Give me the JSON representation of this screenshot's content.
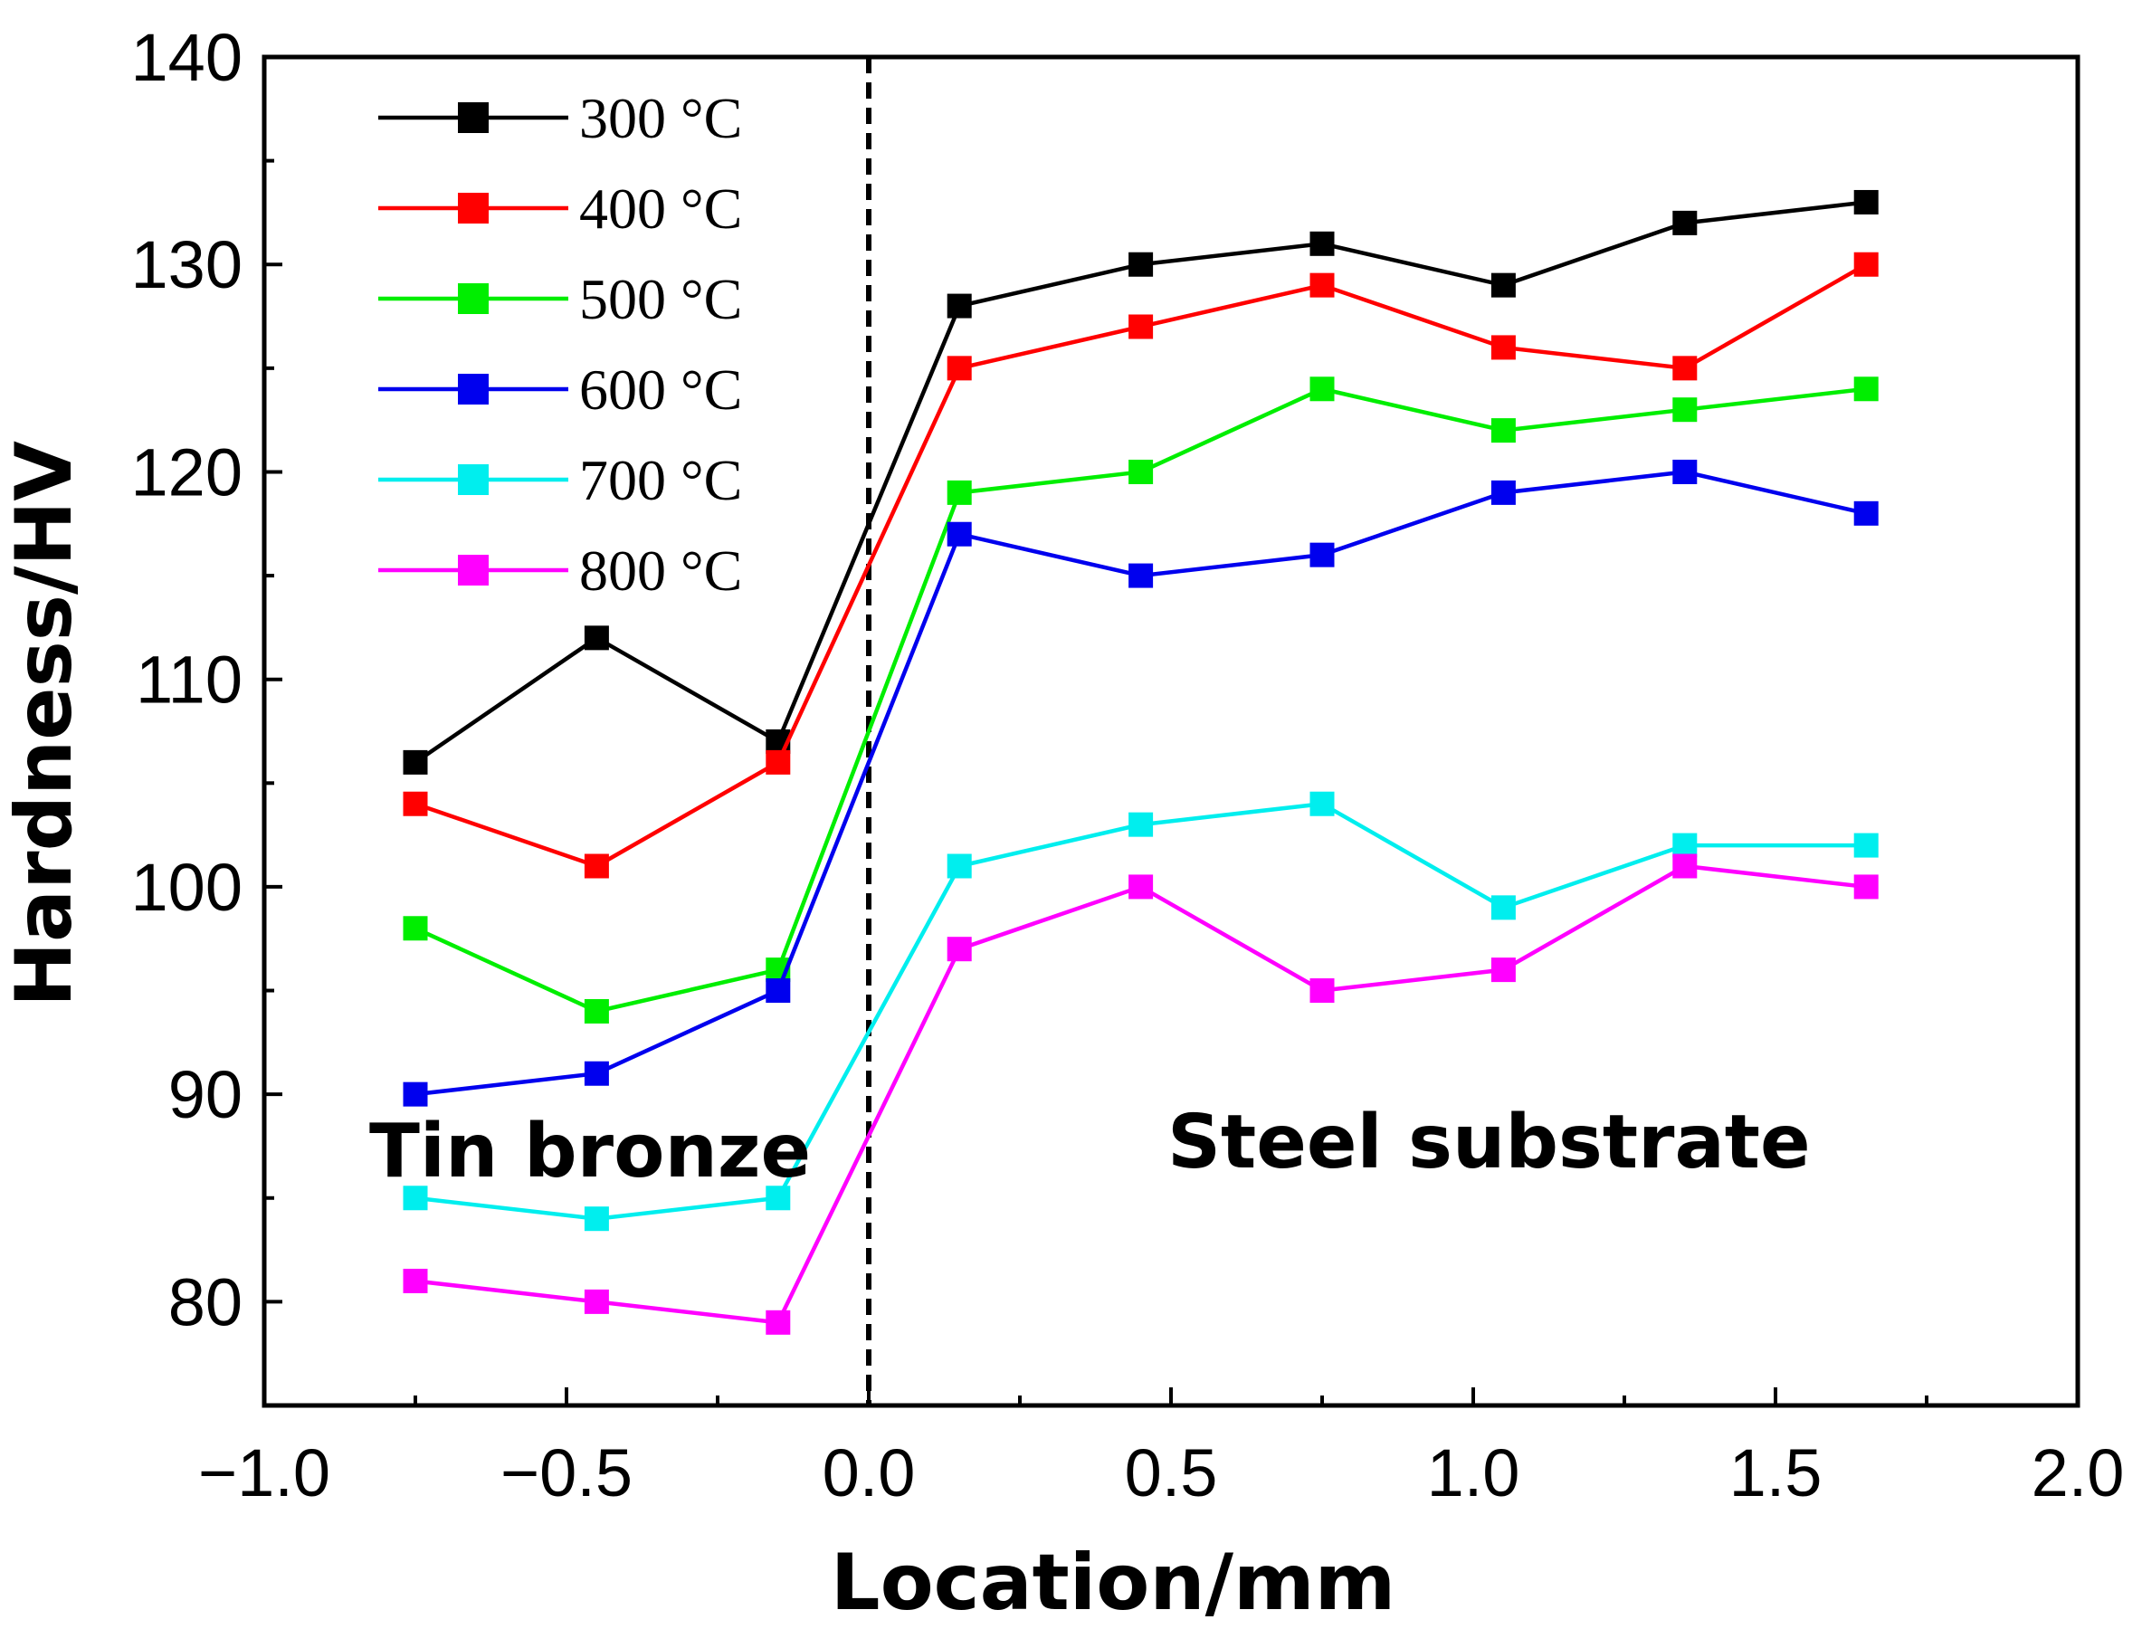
{
  "chart_data": {
    "type": "line",
    "title": "",
    "xlabel": "Location/mm",
    "ylabel": "Hardness/HV",
    "xlim": [
      -1.0,
      2.0
    ],
    "ylim": [
      75,
      140
    ],
    "x": [
      -0.75,
      -0.45,
      -0.15,
      0.15,
      0.45,
      0.75,
      1.05,
      1.35,
      1.65
    ],
    "x_ticks": [
      -1.0,
      -0.5,
      0.0,
      0.5,
      1.0,
      1.5,
      2.0
    ],
    "x_tick_labels": [
      "−1.0",
      "−0.5",
      "0.0",
      "0.5",
      "1.0",
      "1.5",
      "2.0"
    ],
    "y_ticks": [
      80,
      90,
      100,
      110,
      120,
      130,
      140
    ],
    "y_tick_labels": [
      "80",
      "90",
      "100",
      "110",
      "120",
      "130",
      "140"
    ],
    "interface_x": 0.0,
    "legend_position": "top-left",
    "series": [
      {
        "name": "300 °C",
        "color": "#000000",
        "values": [
          106,
          112,
          107,
          128,
          130,
          131,
          129,
          132,
          133
        ]
      },
      {
        "name": "400 °C",
        "color": "#ff0000",
        "values": [
          104,
          101,
          106,
          125,
          127,
          129,
          126,
          125,
          130
        ]
      },
      {
        "name": "500 °C",
        "color": "#00ee00",
        "values": [
          98,
          94,
          96,
          119,
          120,
          124,
          122,
          123,
          124
        ]
      },
      {
        "name": "600 °C",
        "color": "#0000ee",
        "values": [
          90,
          91,
          95,
          117,
          115,
          116,
          119,
          120,
          118
        ]
      },
      {
        "name": "700 °C",
        "color": "#00eeee",
        "values": [
          85,
          84,
          85,
          101,
          103,
          104,
          99,
          102,
          102
        ]
      },
      {
        "name": "800 °C",
        "color": "#ff00ff",
        "values": [
          81,
          80,
          79,
          97,
          100,
          95,
          96,
          101,
          100
        ]
      }
    ],
    "annotations": [
      {
        "text": "Tin bronze",
        "position": "bottom-left"
      },
      {
        "text": "Steel substrate",
        "position": "bottom-right"
      }
    ]
  }
}
